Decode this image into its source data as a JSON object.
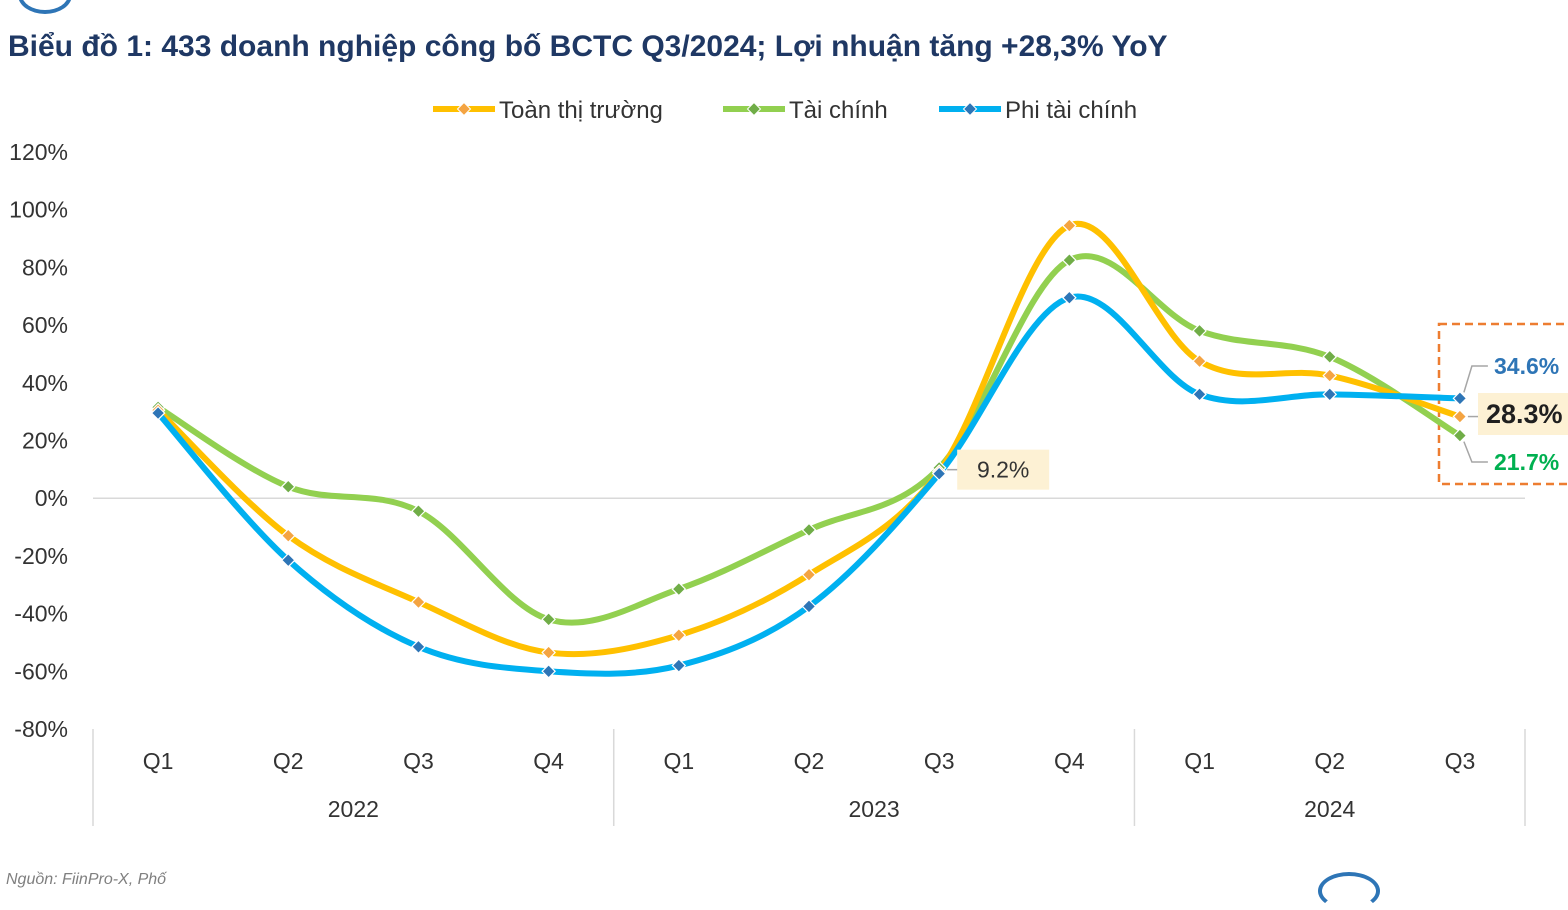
{
  "chart_data": {
    "type": "line",
    "title": "Biểu đồ 1: 433 doanh nghiệp công bố BCTC Q3/2024; Lợi nhuận tăng +28,3% YoY",
    "categories": [
      "Q1",
      "Q2",
      "Q3",
      "Q4",
      "Q1",
      "Q2",
      "Q3",
      "Q4",
      "Q1",
      "Q2",
      "Q3"
    ],
    "groups": [
      {
        "label": "2022",
        "count": 4
      },
      {
        "label": "2023",
        "count": 4
      },
      {
        "label": "2024",
        "count": 3
      }
    ],
    "y_ticks": [
      "120%",
      "100%",
      "80%",
      "60%",
      "40%",
      "20%",
      "0%",
      "-20%",
      "-40%",
      "-60%",
      "-80%"
    ],
    "ylim": [
      -80,
      120
    ],
    "legend_position": "top-center",
    "series": [
      {
        "name": "Toàn thị trường",
        "color": "#ffc000",
        "marker": "#f4a442",
        "values": [
          30.5,
          -13,
          -36,
          -53.5,
          -47.5,
          -26.5,
          9.2,
          94.5,
          47.5,
          42.5,
          28.3
        ]
      },
      {
        "name": "Tài chính",
        "color": "#92d050",
        "marker": "#70ad47",
        "values": [
          31.5,
          4,
          -4.5,
          -42,
          -31.5,
          -11,
          10.5,
          82.5,
          58,
          49,
          21.7
        ]
      },
      {
        "name": "Phi tài chính",
        "color": "#00b0f0",
        "marker": "#2e75b6",
        "values": [
          29.5,
          -21.5,
          -51.5,
          -60,
          -58,
          -37.5,
          8.5,
          69.5,
          36,
          36,
          34.6
        ]
      }
    ],
    "annotations": [
      {
        "text": "9.2%",
        "category_index": 6,
        "value": 9.2
      },
      {
        "text": "34.6%",
        "series": "Phi tài chính",
        "category_index": 10,
        "value": 34.6,
        "color": "#2e75b6"
      },
      {
        "text": "28.3%",
        "series": "Toàn thị trường",
        "category_index": 10,
        "value": 28.3,
        "color": "#1f1f1f"
      },
      {
        "text": "21.7%",
        "series": "Tài chính",
        "category_index": 10,
        "value": 21.7,
        "color": "#00b050"
      }
    ]
  },
  "source_text": "Nguồn: FiinPro-X, Phố"
}
